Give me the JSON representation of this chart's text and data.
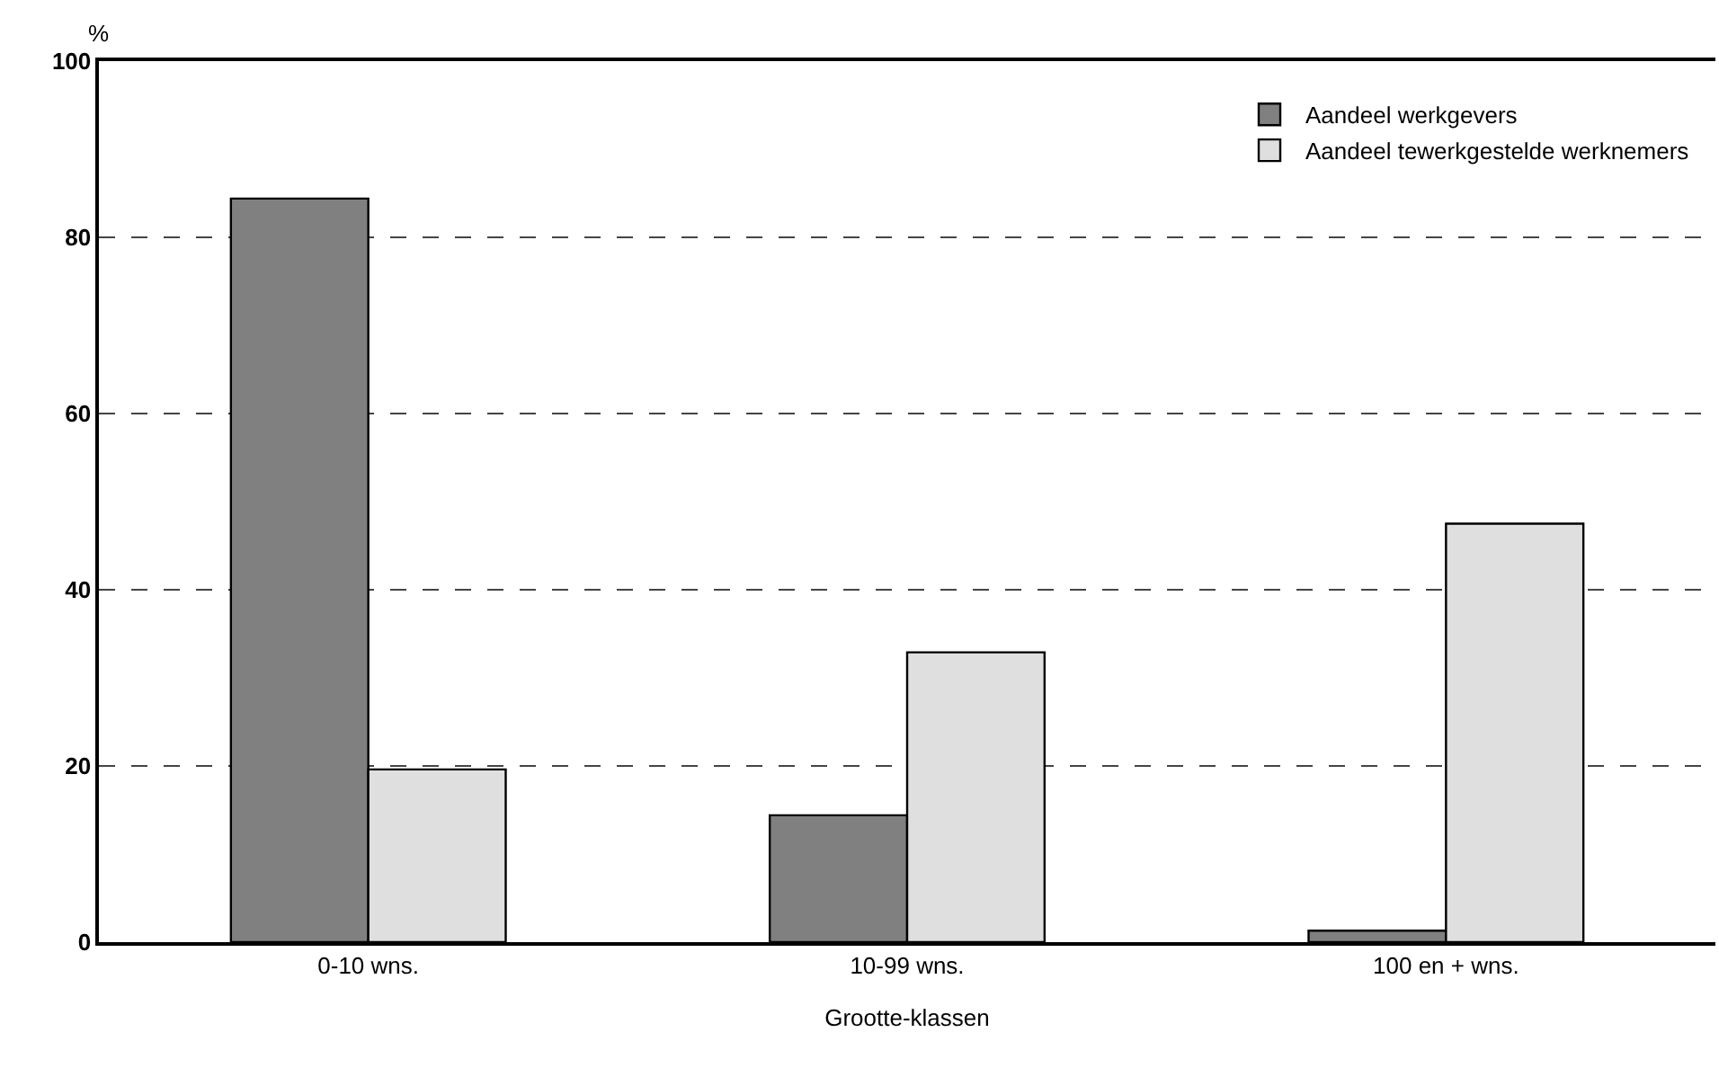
{
  "chart_data": {
    "type": "bar",
    "xlabel": "Grootte-klassen",
    "ylabel": "%",
    "categories": [
      "0-10 wns.",
      "10-99 wns.",
      "100 en + wns."
    ],
    "series": [
      {
        "name": "Aandeel werkgevers",
        "color": "#808080",
        "values": [
          84.4,
          14.4,
          1.3
        ]
      },
      {
        "name": "Aandeel tewerkgestelde werknemers",
        "color": "#dfdfdf",
        "values": [
          19.6,
          32.9,
          47.5
        ]
      }
    ],
    "ylim": [
      0,
      100
    ],
    "yticks": [
      0,
      20,
      40,
      60,
      80,
      100
    ],
    "grid": "y",
    "legend": "top right"
  }
}
